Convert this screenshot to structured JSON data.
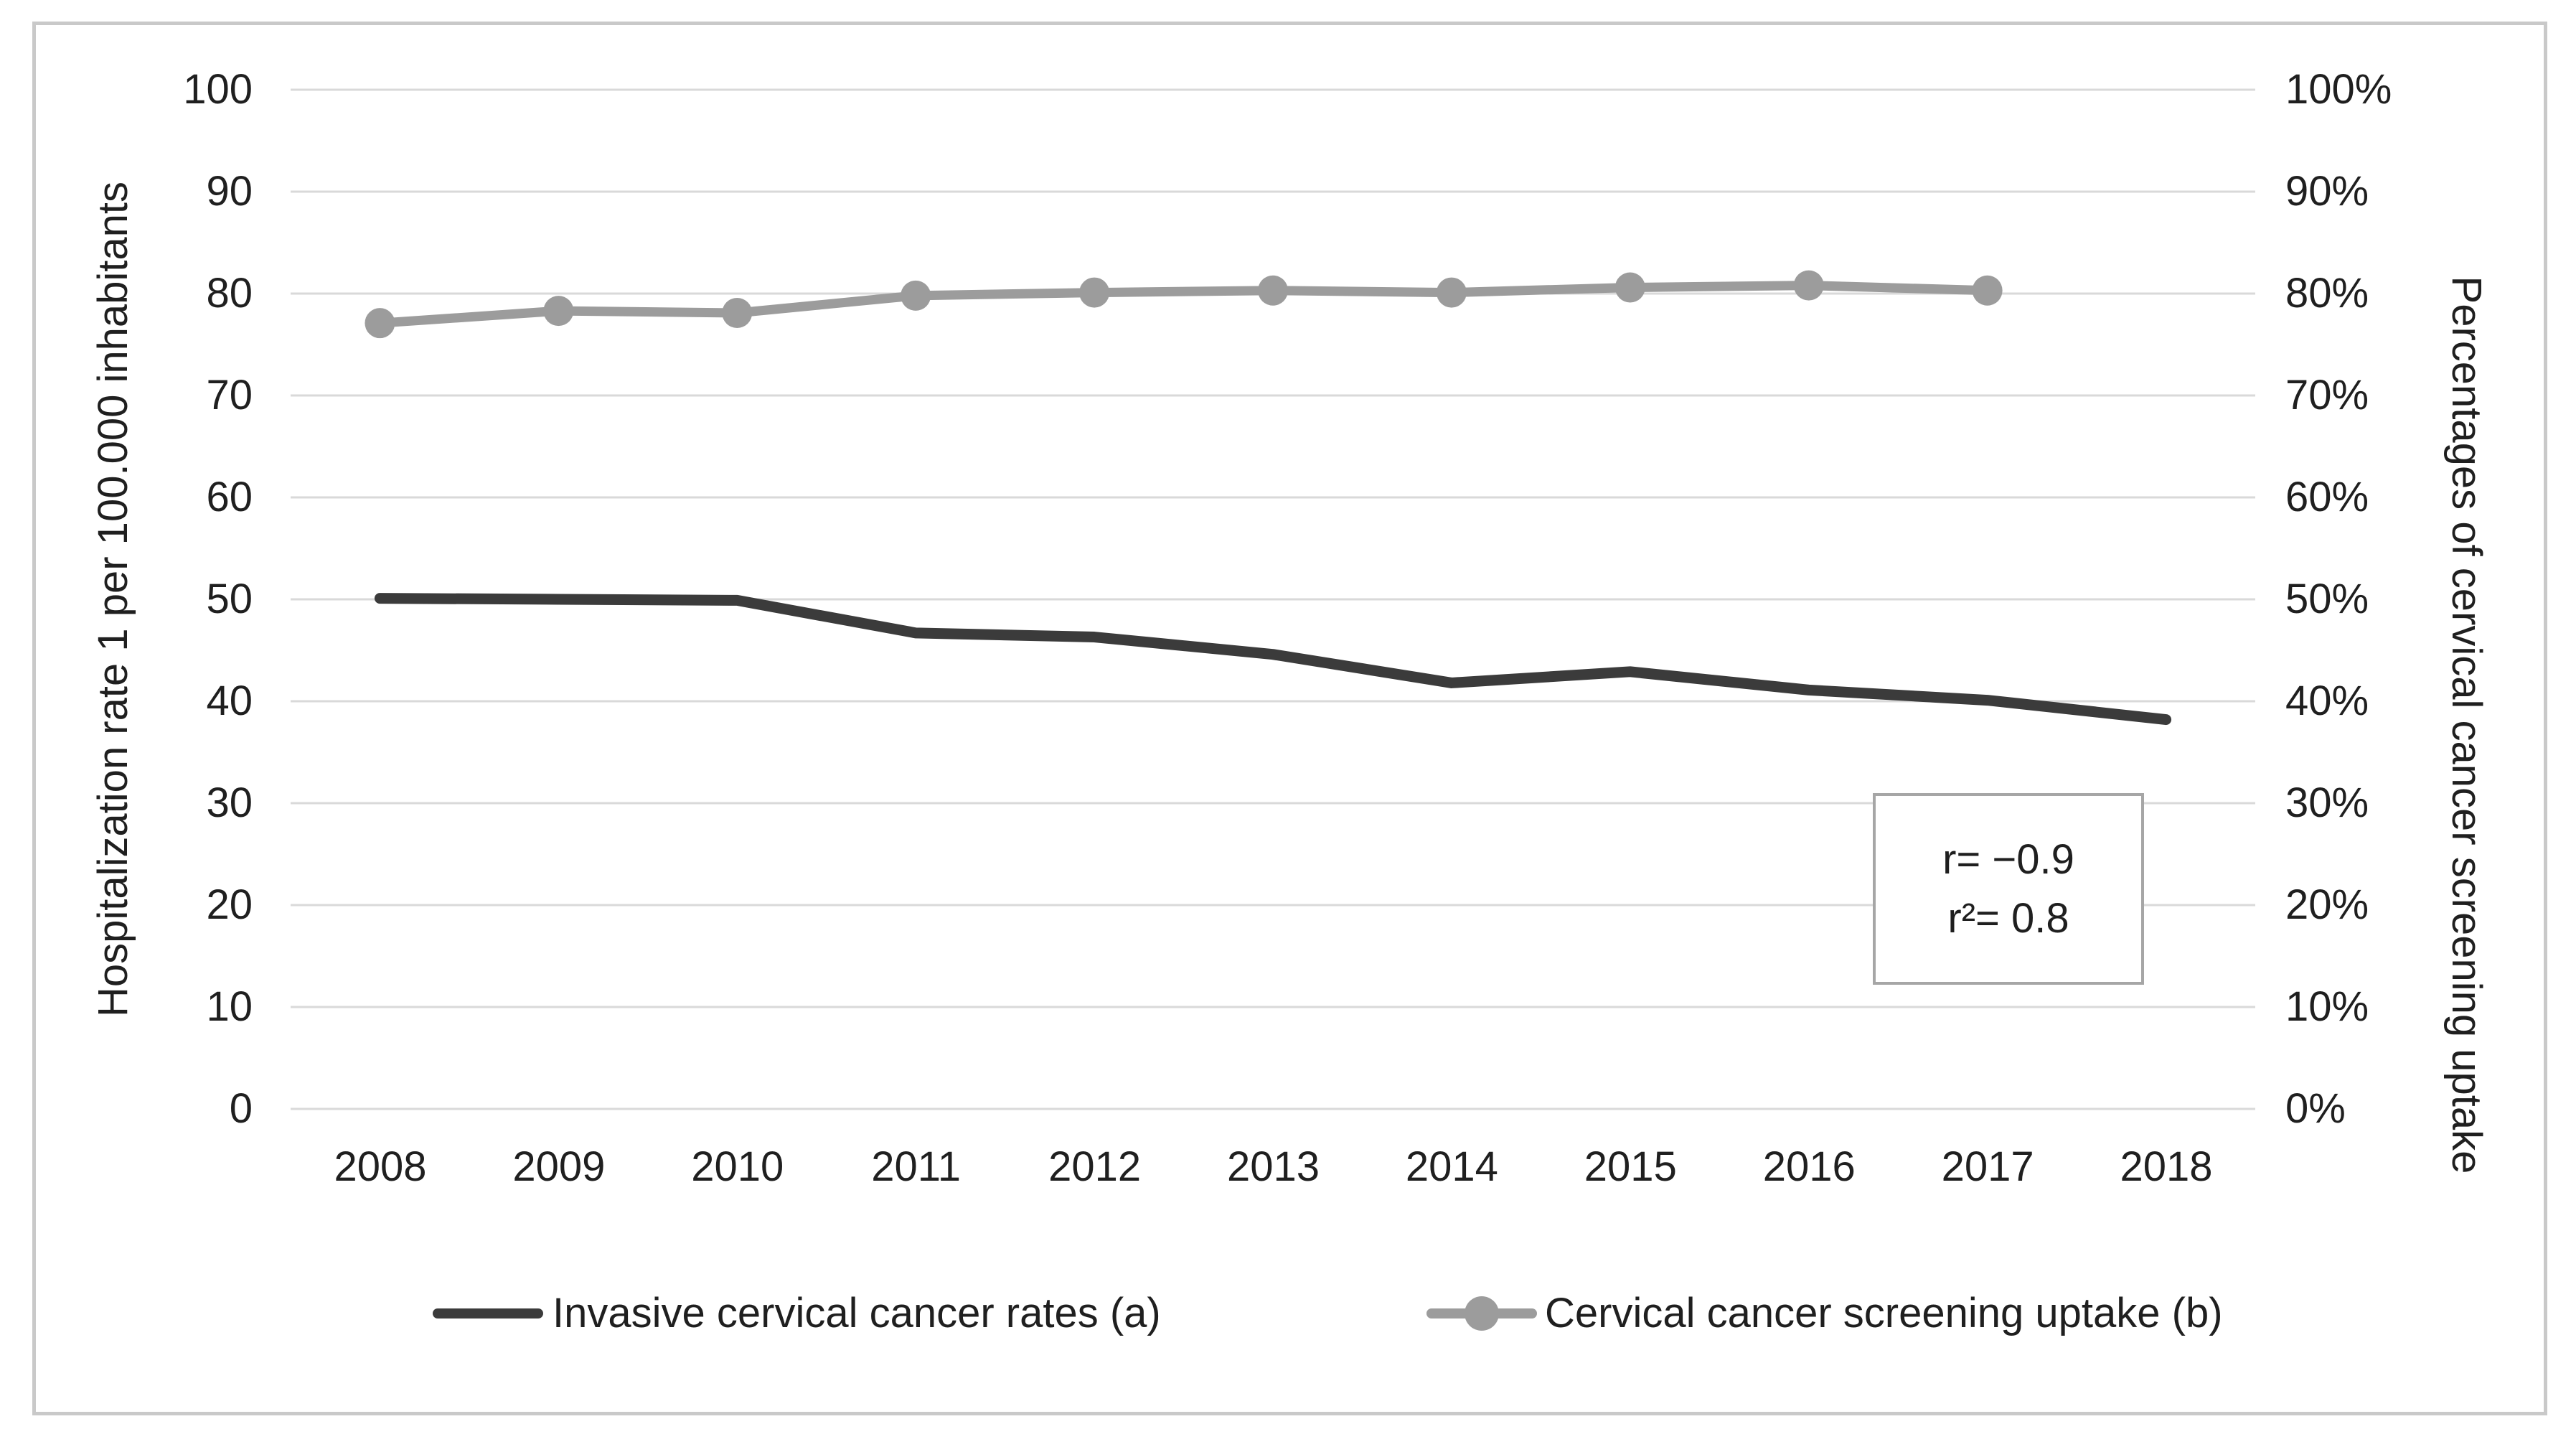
{
  "chart_data": {
    "type": "line",
    "categories": [
      "2008",
      "2009",
      "2010",
      "2011",
      "2012",
      "2013",
      "2014",
      "2015",
      "2016",
      "2017",
      "2018"
    ],
    "series": [
      {
        "name": "Invasive cervical cancer rates (a)",
        "axis": "left",
        "color": "#3b3b3b",
        "marker": false,
        "line_width": 15,
        "values": [
          50.1,
          50.0,
          49.9,
          46.7,
          46.3,
          44.6,
          41.8,
          42.9,
          41.1,
          40.1,
          38.2
        ]
      },
      {
        "name": "Cervical cancer screening uptake (b)",
        "axis": "right",
        "color": "#9c9c9c",
        "marker": true,
        "line_width": 13,
        "values": [
          77.1,
          78.3,
          78.1,
          79.8,
          80.1,
          80.3,
          80.1,
          80.6,
          80.8,
          80.3
        ]
      }
    ],
    "left_axis": {
      "label": "Hospitalization rate 1 per 100.000 inhabitants",
      "ticks": [
        "0",
        "10",
        "20",
        "30",
        "40",
        "50",
        "60",
        "70",
        "80",
        "90",
        "100"
      ],
      "range": [
        0,
        100
      ]
    },
    "right_axis": {
      "label": "Percentages of cervical cancer screening uptake",
      "ticks": [
        "0%",
        "10%",
        "20%",
        "30%",
        "40%",
        "50%",
        "60%",
        "70%",
        "80%",
        "90%",
        "100%"
      ],
      "range": [
        0,
        100
      ]
    },
    "grid": true,
    "gridline_color": "#d9d9d9",
    "legend_position": "bottom",
    "annotation": {
      "line1": "r= −0.9",
      "line2": "r²= 0.8"
    }
  }
}
